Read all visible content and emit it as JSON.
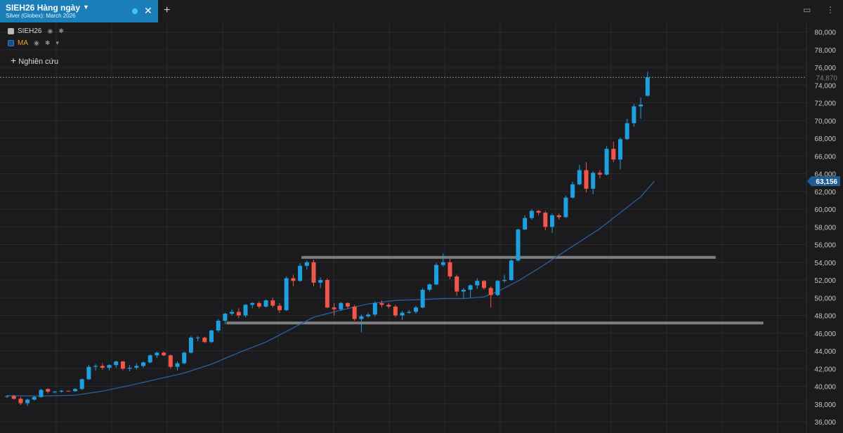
{
  "tab": {
    "title": "SIEH26 Hàng ngày",
    "subtitle": "Silver (Globex): March 2026"
  },
  "legend": [
    {
      "label": "SIEH26",
      "color": "#b9b9b9"
    },
    {
      "label": "MA",
      "color": "#1c6aa9"
    }
  ],
  "add_study_label": "Nghiên cứu",
  "colors": {
    "up": "#1e9fe0",
    "down": "#f0574a",
    "ma": "#2b5f9e",
    "hline": "#8a8a8a",
    "grid": "#2a2a2d",
    "background": "#1b1b1d"
  },
  "chart_data": {
    "type": "candlestick",
    "ylim": [
      35000,
      81500
    ],
    "yticks": [
      "36,000",
      "38,000",
      "40,000",
      "42,000",
      "44,000",
      "46,000",
      "48,000",
      "50,000",
      "52,000",
      "54,000",
      "56,000",
      "58,000",
      "60,000",
      "62,000",
      "64,000",
      "66,000",
      "68,000",
      "70,000",
      "72,000",
      "74,000",
      "76,000",
      "78,000",
      "80,000"
    ],
    "last_price": {
      "value": 74870,
      "label": "74,870"
    },
    "ma_value": {
      "value": 63156,
      "label": "63,156"
    },
    "candles": [
      [
        38850,
        39000,
        38700,
        38900
      ],
      [
        38900,
        39050,
        38500,
        38600
      ],
      [
        38600,
        38800,
        37900,
        38100
      ],
      [
        38100,
        38600,
        37800,
        38500
      ],
      [
        38500,
        38900,
        38400,
        38800
      ],
      [
        38800,
        39700,
        38700,
        39600
      ],
      [
        39700,
        39800,
        39200,
        39400
      ],
      [
        39400,
        39500,
        39200,
        39400
      ],
      [
        39400,
        39600,
        39300,
        39500
      ],
      [
        39500,
        39500,
        39400,
        39450
      ],
      [
        39450,
        39800,
        39400,
        39700
      ],
      [
        39700,
        40900,
        39600,
        40800
      ],
      [
        40800,
        42400,
        40700,
        42200
      ],
      [
        42200,
        42500,
        41800,
        42300
      ],
      [
        42300,
        42600,
        41900,
        42100
      ],
      [
        42100,
        42500,
        41800,
        42400
      ],
      [
        42400,
        42900,
        42100,
        42800
      ],
      [
        42800,
        42900,
        41800,
        42000
      ],
      [
        42000,
        42400,
        41700,
        42100
      ],
      [
        42100,
        42600,
        41900,
        42300
      ],
      [
        42300,
        42800,
        42100,
        42700
      ],
      [
        42700,
        43600,
        42600,
        43500
      ],
      [
        43500,
        43900,
        43200,
        43800
      ],
      [
        43800,
        43900,
        43400,
        43500
      ],
      [
        43500,
        43600,
        42000,
        42200
      ],
      [
        42200,
        42800,
        41800,
        42600
      ],
      [
        42600,
        43900,
        42500,
        43800
      ],
      [
        43800,
        45700,
        43700,
        45500
      ],
      [
        45500,
        45700,
        45100,
        45500
      ],
      [
        45500,
        45600,
        44900,
        45000
      ],
      [
        45000,
        46400,
        44900,
        46300
      ],
      [
        46300,
        47600,
        46100,
        47400
      ],
      [
        47400,
        48300,
        47000,
        48200
      ],
      [
        48200,
        48700,
        48000,
        48400
      ],
      [
        48400,
        48800,
        47700,
        48000
      ],
      [
        48000,
        49300,
        47800,
        49200
      ],
      [
        49200,
        49500,
        48800,
        49400
      ],
      [
        49400,
        49600,
        48800,
        49000
      ],
      [
        49000,
        49800,
        48900,
        49700
      ],
      [
        49700,
        50000,
        48900,
        49100
      ],
      [
        49100,
        49400,
        48300,
        48600
      ],
      [
        48600,
        52400,
        48500,
        52200
      ],
      [
        52200,
        52600,
        51300,
        51900
      ],
      [
        51900,
        53900,
        51800,
        53600
      ],
      [
        53600,
        54200,
        53200,
        54000
      ],
      [
        54000,
        54300,
        51300,
        51700
      ],
      [
        51700,
        52300,
        51100,
        52000
      ],
      [
        52000,
        52200,
        48800,
        48900
      ],
      [
        48900,
        49400,
        48000,
        48700
      ],
      [
        48700,
        49500,
        48500,
        49400
      ],
      [
        49400,
        49500,
        48800,
        49000
      ],
      [
        49000,
        49200,
        47400,
        47600
      ],
      [
        47600,
        48100,
        46100,
        47900
      ],
      [
        47900,
        48300,
        47700,
        48100
      ],
      [
        48100,
        49600,
        47900,
        49400
      ],
      [
        49400,
        49700,
        48900,
        49200
      ],
      [
        49200,
        49400,
        48800,
        49000
      ],
      [
        49000,
        49200,
        47800,
        48000
      ],
      [
        48000,
        48500,
        47500,
        48300
      ],
      [
        48300,
        48600,
        48200,
        48400
      ],
      [
        48400,
        49100,
        48200,
        48900
      ],
      [
        48900,
        51100,
        48800,
        50900
      ],
      [
        50900,
        51600,
        50700,
        51500
      ],
      [
        51500,
        53900,
        51400,
        53700
      ],
      [
        53700,
        55000,
        53500,
        54000
      ],
      [
        54000,
        54400,
        52100,
        52400
      ],
      [
        52400,
        52600,
        50200,
        50700
      ],
      [
        50700,
        51100,
        49900,
        50900
      ],
      [
        50900,
        51500,
        50000,
        51400
      ],
      [
        51400,
        52200,
        51000,
        51900
      ],
      [
        51900,
        52000,
        50900,
        51100
      ],
      [
        51100,
        51300,
        48900,
        50300
      ],
      [
        50300,
        52000,
        50200,
        51900
      ],
      [
        51900,
        52600,
        51700,
        52000
      ],
      [
        52000,
        54500,
        51900,
        54200
      ],
      [
        54200,
        57800,
        54100,
        57700
      ],
      [
        57700,
        59300,
        57600,
        59000
      ],
      [
        59000,
        60000,
        58800,
        59800
      ],
      [
        59800,
        59900,
        59300,
        59600
      ],
      [
        59600,
        59800,
        57600,
        58000
      ],
      [
        58000,
        59500,
        57300,
        59300
      ],
      [
        59300,
        59500,
        58800,
        59100
      ],
      [
        59100,
        61500,
        59000,
        61300
      ],
      [
        61300,
        63100,
        61200,
        62800
      ],
      [
        62800,
        65000,
        62700,
        64400
      ],
      [
        64400,
        65300,
        61900,
        62300
      ],
      [
        62300,
        64300,
        61700,
        64100
      ],
      [
        64100,
        64400,
        63500,
        63900
      ],
      [
        63900,
        67100,
        63800,
        66800
      ],
      [
        66800,
        67600,
        65300,
        65600
      ],
      [
        65600,
        68100,
        64500,
        67900
      ],
      [
        67900,
        70200,
        67800,
        69700
      ],
      [
        69700,
        71900,
        69300,
        71600
      ],
      [
        71600,
        72600,
        70200,
        71800
      ],
      [
        72800,
        75500,
        72700,
        74870
      ]
    ],
    "ma": [
      [
        0,
        38950
      ],
      [
        5,
        38900
      ],
      [
        10,
        39000
      ],
      [
        14,
        39450
      ],
      [
        18,
        40100
      ],
      [
        22,
        40800
      ],
      [
        26,
        41500
      ],
      [
        30,
        42500
      ],
      [
        34,
        43800
      ],
      [
        38,
        45000
      ],
      [
        42,
        46600
      ],
      [
        45,
        47800
      ],
      [
        49,
        48600
      ],
      [
        53,
        49300
      ],
      [
        57,
        49700
      ],
      [
        61,
        49800
      ],
      [
        64,
        49900
      ],
      [
        67,
        49900
      ],
      [
        70,
        50100
      ],
      [
        72,
        50700
      ],
      [
        75,
        51900
      ],
      [
        78,
        53300
      ],
      [
        81,
        54800
      ],
      [
        84,
        56300
      ],
      [
        87,
        57800
      ],
      [
        90,
        59600
      ],
      [
        93,
        61400
      ],
      [
        95,
        63156
      ]
    ],
    "hlines": [
      {
        "value": 54550,
        "x_start": 43,
        "x_end": 104
      },
      {
        "value": 47150,
        "x_start": 32,
        "x_end": 111
      }
    ]
  }
}
